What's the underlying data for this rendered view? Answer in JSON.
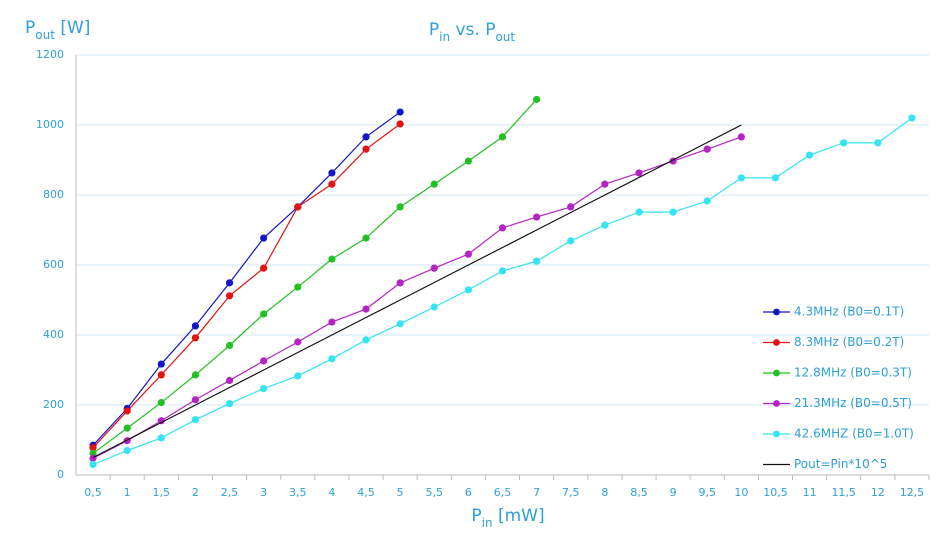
{
  "chart_data": {
    "type": "line",
    "title": [
      {
        "text": "P"
      },
      {
        "text": "in",
        "sub": true
      },
      {
        "text": " vs. P"
      },
      {
        "text": "out",
        "sub": true
      }
    ],
    "y_label": [
      {
        "text": "P"
      },
      {
        "text": "out",
        "sub": true
      },
      {
        "text": " [W]"
      }
    ],
    "x_label": [
      {
        "text": "P"
      },
      {
        "text": "in",
        "sub": true
      },
      {
        "text": " [mW]"
      }
    ],
    "categories": [
      "0,5",
      "1",
      "1,5",
      "2",
      "2,5",
      "3",
      "3,5",
      "4",
      "4,5",
      "5",
      "5,5",
      "6",
      "6,5",
      "7",
      "7,5",
      "8",
      "8,5",
      "9",
      "9,5",
      "10",
      "10,5",
      "11",
      "11,5",
      "12",
      "12,5"
    ],
    "ylim": [
      0,
      1200
    ],
    "yticks": [
      0,
      200,
      400,
      600,
      800,
      1000,
      1200
    ],
    "grid": true,
    "legend": "right",
    "series": [
      {
        "name": "4.3MHz (B0=0.1T)",
        "color": "#1414c8",
        "markers": true,
        "values": [
          85,
          190,
          317,
          426,
          549,
          677,
          766,
          863,
          966,
          1037,
          null,
          null,
          null,
          null,
          null,
          null,
          null,
          null,
          null,
          null,
          null,
          null,
          null,
          null,
          null
        ]
      },
      {
        "name": "8.3MHz (B0=0.2T)",
        "color": "#e01414",
        "markers": true,
        "values": [
          78,
          183,
          286,
          392,
          512,
          591,
          766,
          831,
          931,
          1003,
          null,
          null,
          null,
          null,
          null,
          null,
          null,
          null,
          null,
          null,
          null,
          null,
          null,
          null,
          null
        ]
      },
      {
        "name": "12.8MHz (B0=0.3T)",
        "color": "#22c022",
        "markers": true,
        "values": [
          62,
          134,
          207,
          286,
          370,
          460,
          537,
          617,
          677,
          766,
          831,
          897,
          966,
          1073,
          null,
          null,
          null,
          null,
          null,
          null,
          null,
          null,
          null,
          null,
          null
        ]
      },
      {
        "name": "21.3MHz (B0=0.5T)",
        "color": "#b424c4",
        "markers": true,
        "values": [
          48,
          98,
          155,
          215,
          270,
          326,
          380,
          437,
          474,
          549,
          591,
          631,
          706,
          737,
          766,
          831,
          863,
          897,
          931,
          966,
          null,
          null,
          null,
          null,
          null
        ]
      },
      {
        "name": "42.6MHZ (B0=1.0T)",
        "color": "#34e4f0",
        "markers": true,
        "values": [
          30,
          70,
          106,
          158,
          204,
          247,
          283,
          332,
          386,
          432,
          480,
          529,
          583,
          611,
          669,
          714,
          751,
          751,
          783,
          849,
          849,
          914,
          949,
          949,
          1020
        ]
      },
      {
        "name": "Pout=Pin*10^5",
        "color": "#111111",
        "markers": false,
        "values": [
          50,
          100,
          150,
          200,
          250,
          300,
          350,
          400,
          450,
          500,
          550,
          600,
          650,
          700,
          750,
          800,
          850,
          900,
          950,
          1000,
          null,
          null,
          null,
          null,
          null
        ]
      }
    ]
  }
}
